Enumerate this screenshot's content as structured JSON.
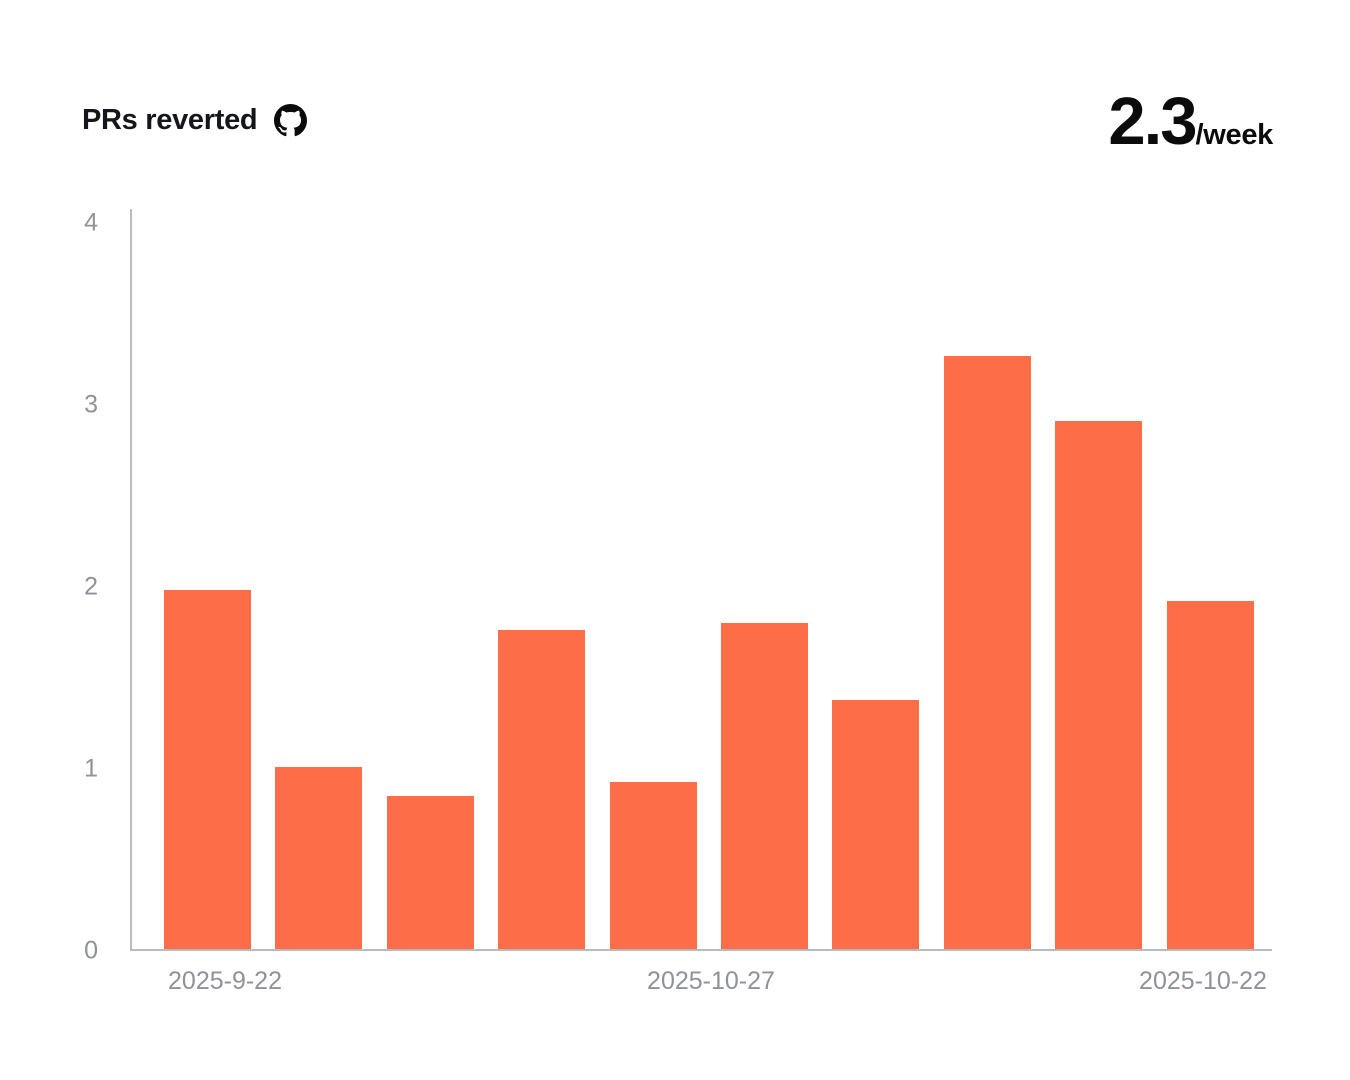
{
  "header": {
    "title": "PRs reverted",
    "source_icon": "github-icon",
    "metric_value": "2.3",
    "metric_unit": "/week"
  },
  "chart_data": {
    "type": "bar",
    "title": "PRs reverted",
    "summary": {
      "value": 2.3,
      "unit": "per week"
    },
    "values": [
      1.97,
      1.0,
      0.84,
      1.75,
      0.92,
      1.79,
      1.37,
      3.26,
      2.9,
      1.91
    ],
    "y_ticks": [
      0,
      1,
      2,
      3,
      4
    ],
    "ylim": [
      0,
      4
    ],
    "x_tick_labels": [
      "2025-9-22",
      "2025-10-27",
      "2025-10-22"
    ],
    "xlabel": "",
    "ylabel": "",
    "grid": false,
    "legend": "none",
    "bar_color": "#fc6d48",
    "axis_line_color": "#b9bcbe",
    "tick_label_color": "#8f9296"
  }
}
